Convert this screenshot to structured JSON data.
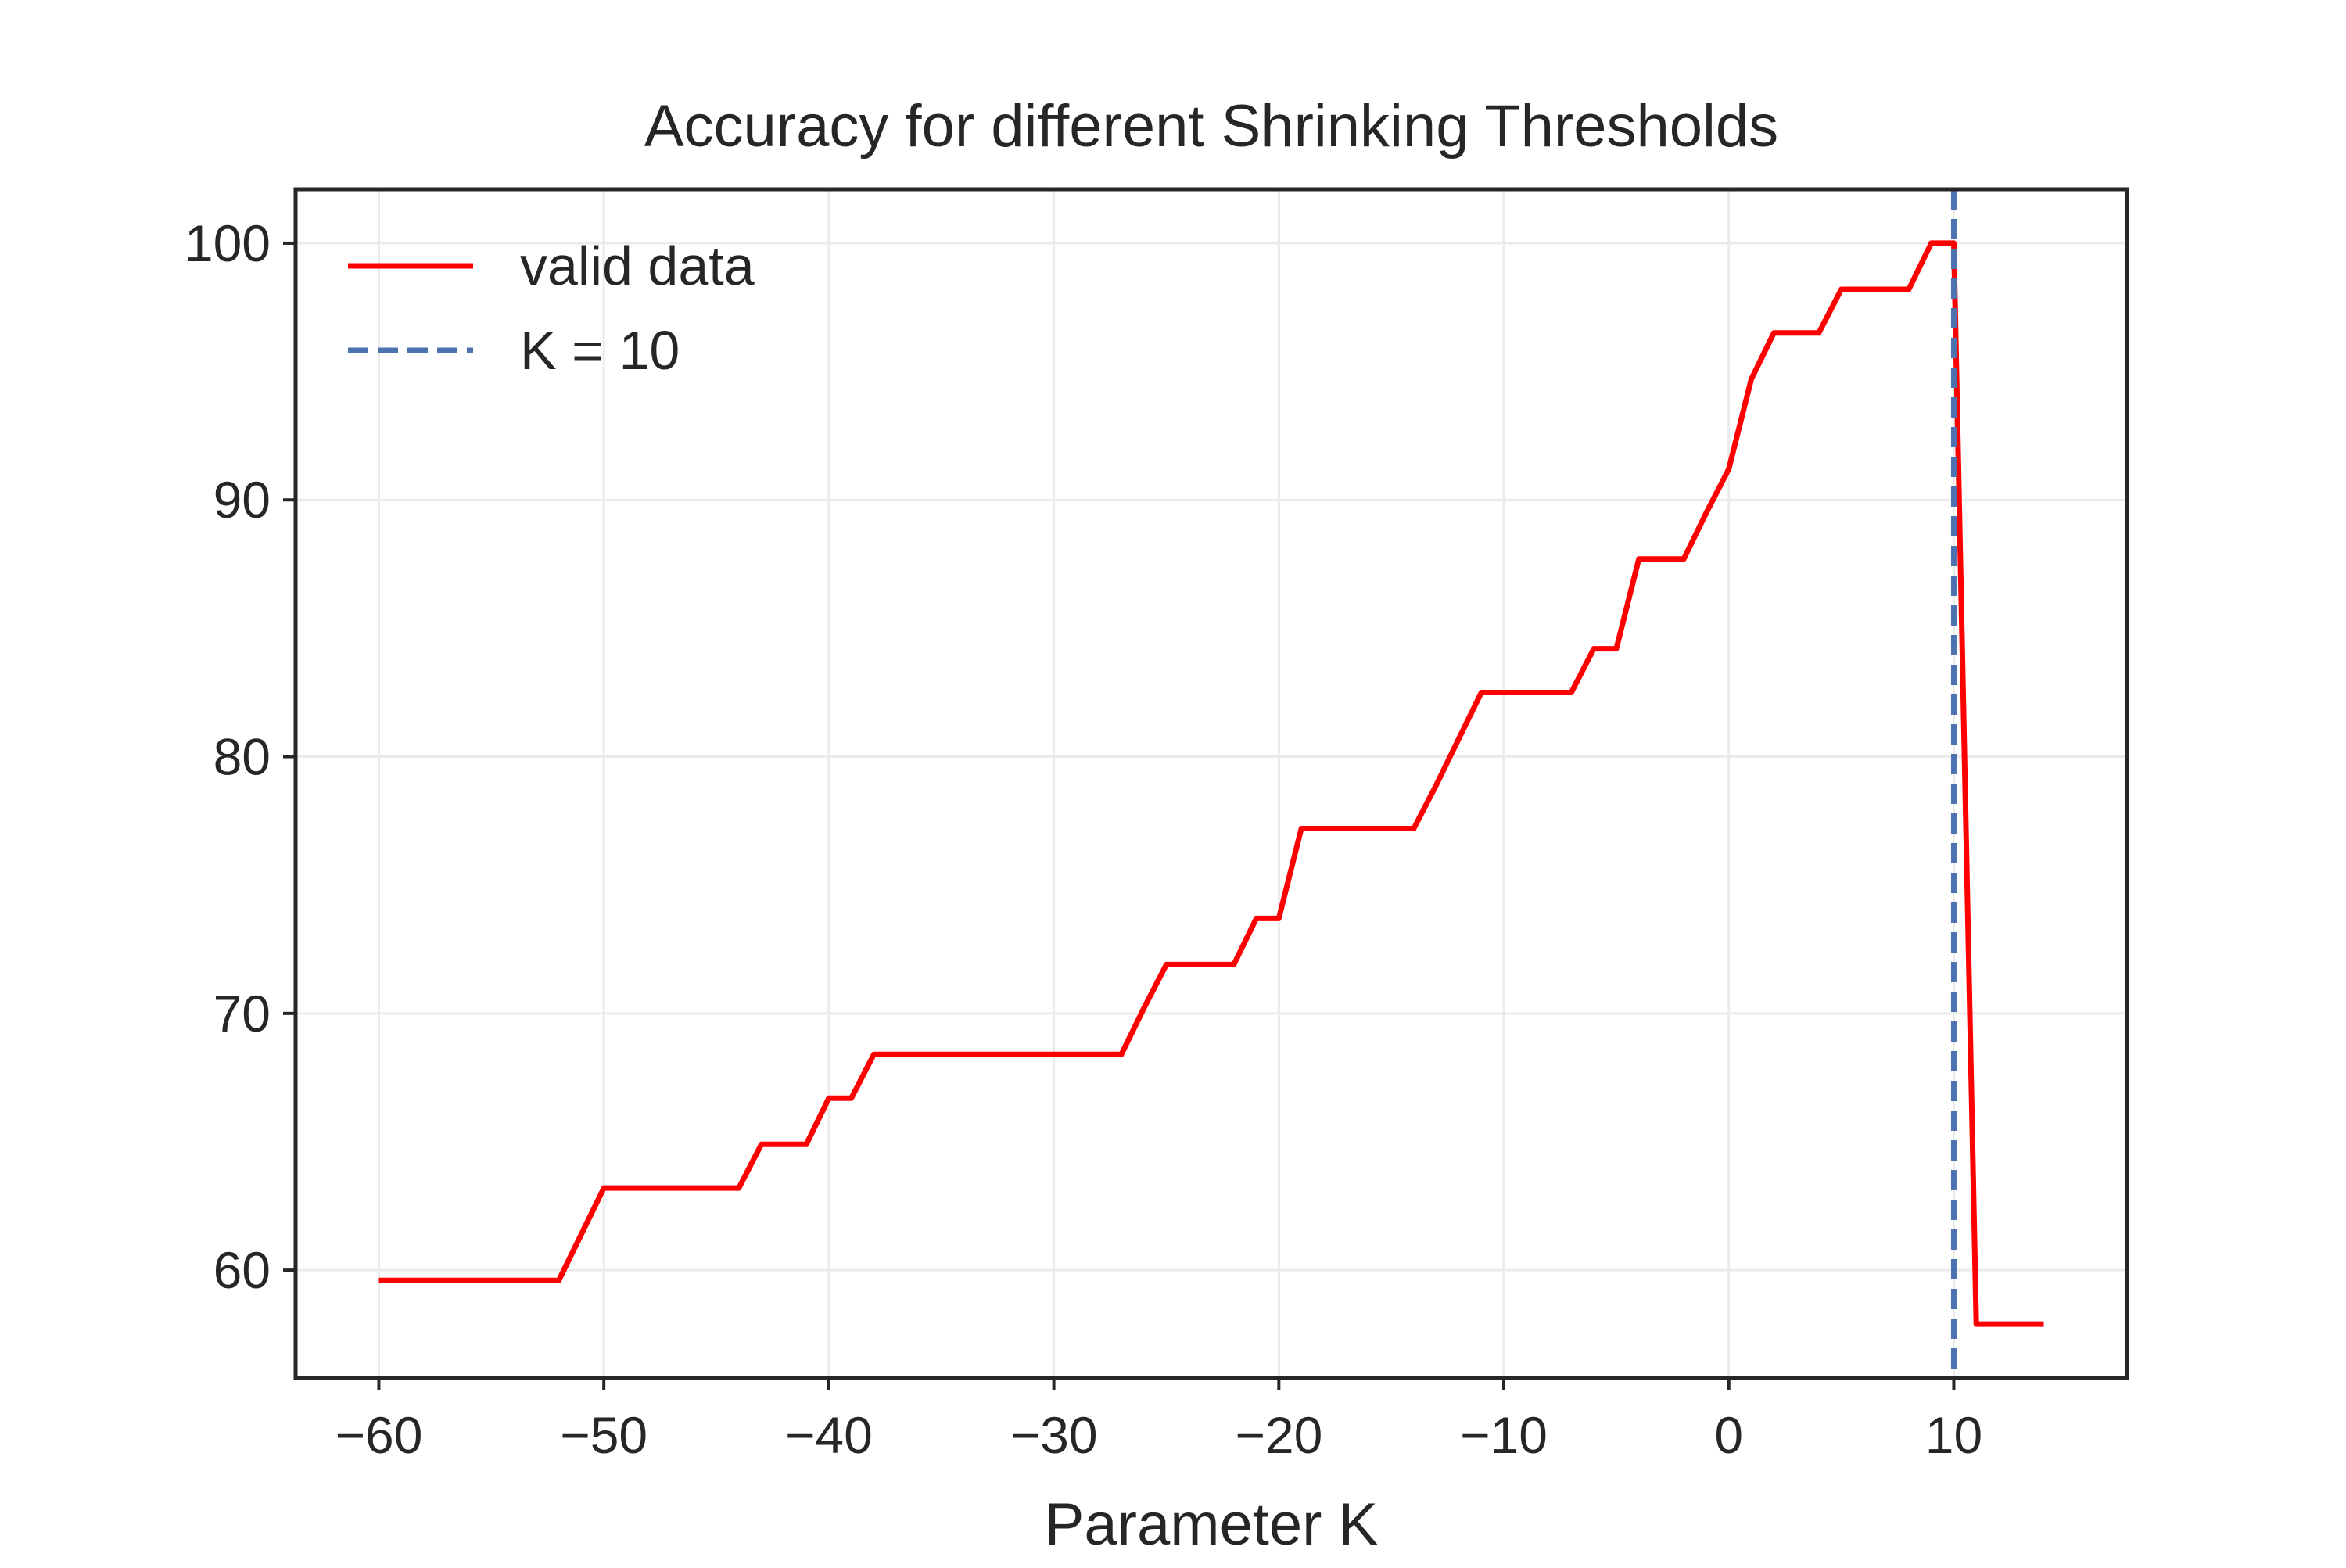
{
  "chart_data": {
    "type": "line",
    "title": "Accuracy for different Shrinking Thresholds",
    "xlabel": "Parameter K",
    "ylabel": "",
    "xlim": [
      -63.7,
      17.7
    ],
    "ylim": [
      55.8,
      102.1
    ],
    "xticks": [
      -60,
      -50,
      -40,
      -30,
      -20,
      -10,
      0,
      10
    ],
    "xtick_labels": [
      "−60",
      "−50",
      "−40",
      "−30",
      "−20",
      "−10",
      "0",
      "10"
    ],
    "yticks": [
      60,
      70,
      80,
      90,
      100
    ],
    "ytick_labels": [
      "60",
      "70",
      "80",
      "90",
      "100"
    ],
    "grid": true,
    "legend_position": "upper left",
    "series": [
      {
        "name": "valid data",
        "color": "#ff0000",
        "style": "solid",
        "x": [
          -60,
          -59,
          -58,
          -57,
          -56,
          -55,
          -54,
          -53,
          -52,
          -51,
          -50,
          -49,
          -48,
          -47,
          -46,
          -45,
          -44,
          -43,
          -42,
          -41,
          -40,
          -39,
          -38,
          -37,
          -36,
          -35,
          -34,
          -33,
          -32,
          -31,
          -30,
          -29,
          -28,
          -27,
          -26,
          -25,
          -24,
          -23,
          -22,
          -21,
          -20,
          -19,
          -18,
          -17,
          -16,
          -15,
          -14,
          -13,
          -12,
          -11,
          -10,
          -9,
          -8,
          -7,
          -6,
          -5,
          -4,
          -3,
          -2,
          -1,
          0,
          1,
          2,
          3,
          4,
          5,
          6,
          7,
          8,
          9,
          10,
          11,
          12,
          13,
          14
        ],
        "y": [
          59.6,
          59.6,
          59.6,
          59.6,
          59.6,
          59.6,
          59.6,
          59.6,
          59.6,
          61.4,
          63.2,
          63.2,
          63.2,
          63.2,
          63.2,
          63.2,
          63.2,
          64.9,
          64.9,
          64.9,
          66.7,
          66.7,
          68.4,
          68.4,
          68.4,
          68.4,
          68.4,
          68.4,
          68.4,
          68.4,
          68.4,
          68.4,
          68.4,
          68.4,
          70.2,
          71.9,
          71.9,
          71.9,
          71.9,
          73.7,
          73.7,
          77.2,
          77.2,
          77.2,
          77.2,
          77.2,
          77.2,
          78.9,
          80.7,
          82.5,
          82.5,
          82.5,
          82.5,
          82.5,
          84.2,
          84.2,
          87.7,
          87.7,
          87.7,
          89.5,
          91.2,
          94.7,
          96.5,
          96.5,
          96.5,
          98.2,
          98.2,
          98.2,
          98.2,
          100,
          100,
          57.9,
          57.9,
          57.9,
          57.9
        ]
      },
      {
        "name": "K = 10",
        "color": "#4c72b0",
        "style": "dashed",
        "vline_x": 10
      }
    ]
  }
}
